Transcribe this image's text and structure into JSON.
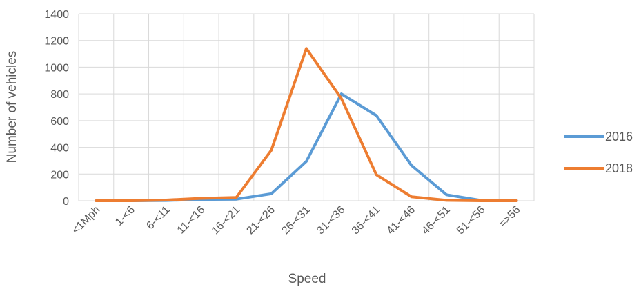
{
  "chart_data": {
    "type": "line",
    "title": "",
    "xlabel": "Speed",
    "ylabel": "Number of vehicles",
    "categories": [
      "<1Mph",
      "1-<6",
      "6-<11",
      "11-<16",
      "16-<21",
      "21-<26",
      "26-<31",
      "31-<36",
      "36-<41",
      "41-<46",
      "46-<51",
      "51-<56",
      "=>56"
    ],
    "ylim": [
      0,
      1400
    ],
    "yticks": [
      0,
      200,
      400,
      600,
      800,
      1000,
      1200,
      1400
    ],
    "grid": true,
    "legend_position": "right",
    "series": [
      {
        "name": "2016",
        "color": "#5B9BD5",
        "values": [
          0,
          0,
          2,
          10,
          12,
          52,
          295,
          800,
          638,
          265,
          45,
          2,
          0
        ]
      },
      {
        "name": "2018",
        "color": "#ED7D31",
        "values": [
          0,
          0,
          5,
          18,
          25,
          378,
          1140,
          765,
          195,
          30,
          3,
          0,
          0
        ]
      }
    ]
  }
}
